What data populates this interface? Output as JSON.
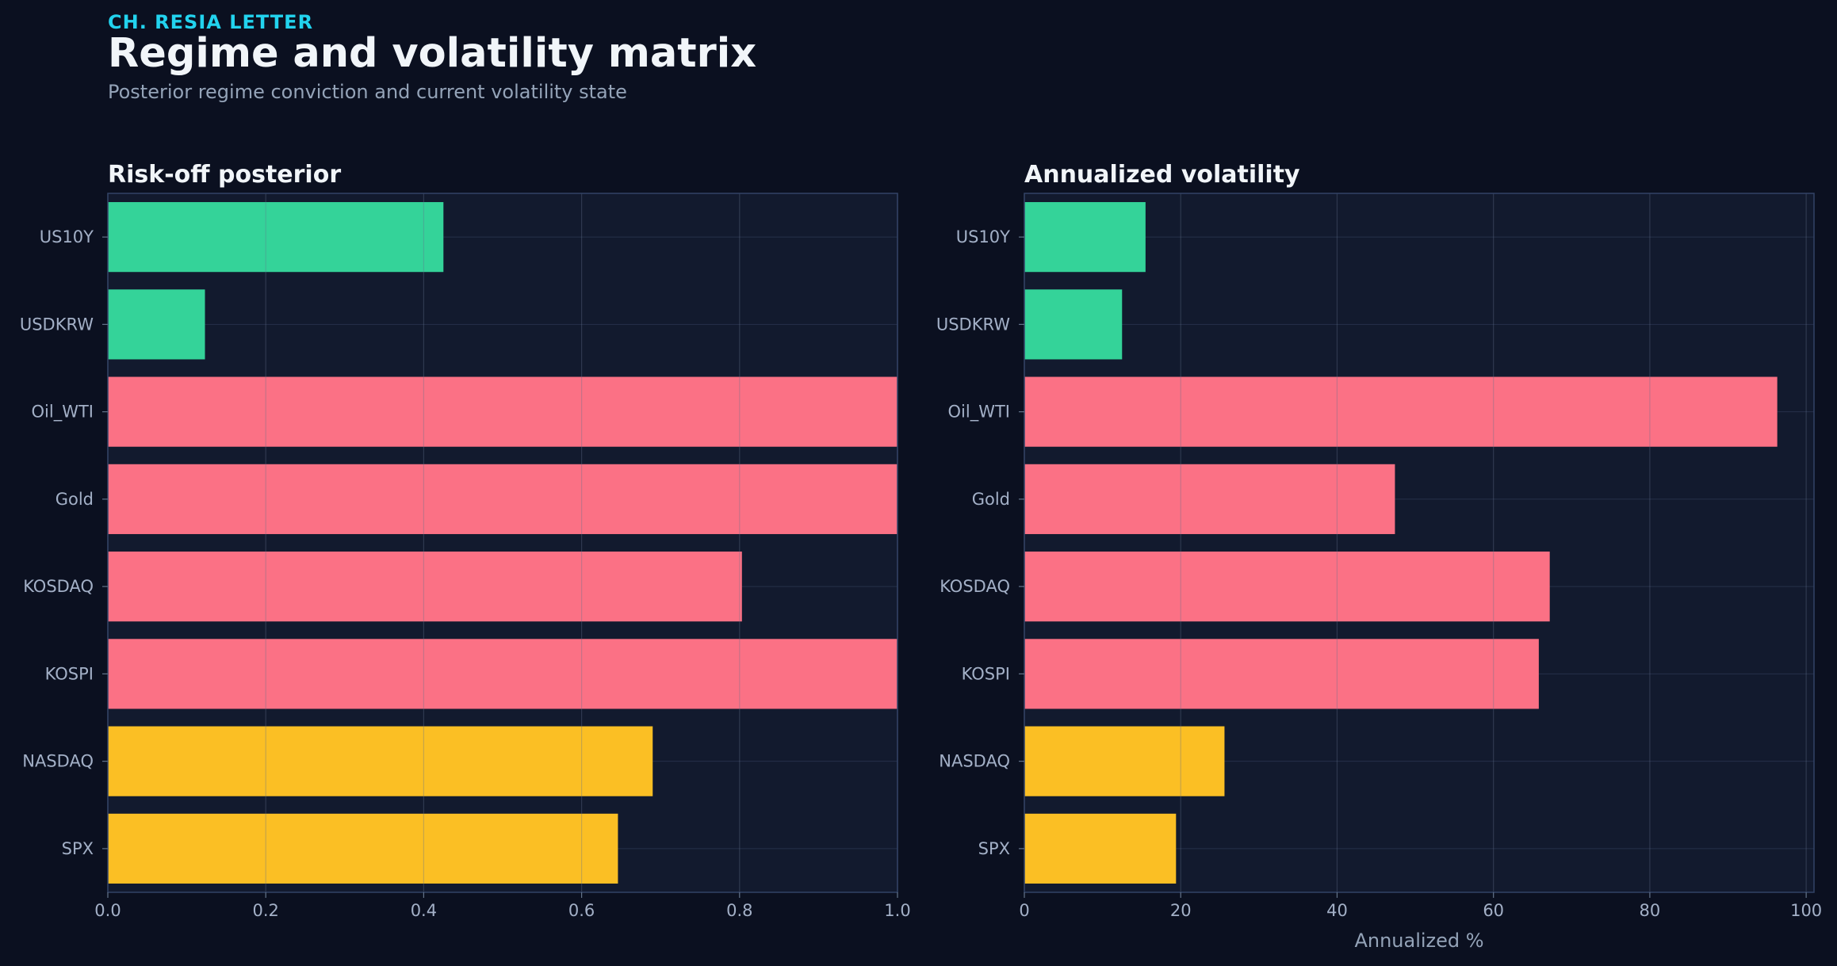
{
  "header": {
    "kicker": "CH. RESIA LETTER",
    "title": "Regime and volatility matrix",
    "subtitle": "Posterior regime conviction and current volatility state"
  },
  "colors": {
    "background": "#0b1020",
    "panel": "#121a2e",
    "risk_off": "#fb7185",
    "risk_on": "#34d399",
    "neutral": "#fbbf24",
    "accent": "#22d3ee"
  },
  "chart_data": [
    {
      "type": "bar",
      "orientation": "horizontal",
      "title": "Risk-off posterior",
      "xlabel": "",
      "ylabel": "",
      "categories": [
        "US10Y",
        "USDKRW",
        "Oil_WTI",
        "Gold",
        "KOSDAQ",
        "KOSPI",
        "NASDAQ",
        "SPX"
      ],
      "values": [
        0.425,
        0.123,
        1.0,
        1.0,
        0.803,
        1.0,
        0.69,
        0.646
      ],
      "bar_colors": [
        "#34d399",
        "#34d399",
        "#fb7185",
        "#fb7185",
        "#fb7185",
        "#fb7185",
        "#fbbf24",
        "#fbbf24"
      ],
      "xlim": [
        0,
        1.0
      ],
      "xticks": [
        0,
        0.2,
        0.4,
        0.6,
        0.8,
        1.0
      ],
      "xtick_labels": [
        "0.0",
        "0.2",
        "0.4",
        "0.6",
        "0.8",
        "1.0"
      ],
      "grid": true
    },
    {
      "type": "bar",
      "orientation": "horizontal",
      "title": "Annualized volatility",
      "xlabel": "Annualized %",
      "ylabel": "",
      "categories": [
        "US10Y",
        "USDKRW",
        "Oil_WTI",
        "Gold",
        "KOSDAQ",
        "KOSPI",
        "NASDAQ",
        "SPX"
      ],
      "values": [
        15.5,
        12.5,
        96.3,
        47.4,
        67.2,
        65.8,
        25.6,
        19.4
      ],
      "bar_colors": [
        "#34d399",
        "#34d399",
        "#fb7185",
        "#fb7185",
        "#fb7185",
        "#fb7185",
        "#fbbf24",
        "#fbbf24"
      ],
      "xlim": [
        0,
        101
      ],
      "xticks": [
        0,
        20,
        40,
        60,
        80,
        100
      ],
      "xtick_labels": [
        "0",
        "20",
        "40",
        "60",
        "80",
        "100"
      ],
      "grid": true
    }
  ]
}
